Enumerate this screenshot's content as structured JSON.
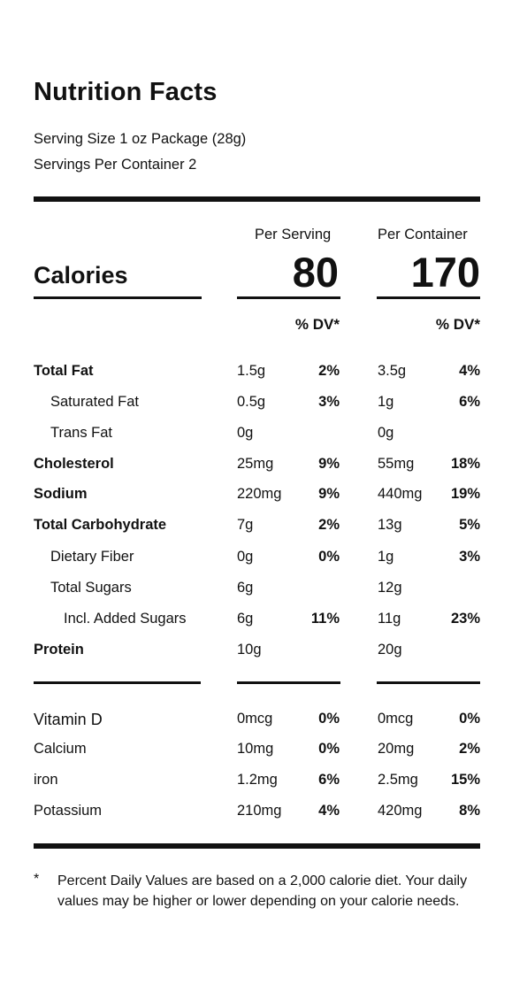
{
  "header": {
    "title": "Nutrition Facts",
    "serving_size": "Serving Size 1 oz Package (28g)",
    "servings_per_container": "Servings Per Container 2"
  },
  "columns": {
    "per_serving": "Per Serving",
    "per_container": "Per Container"
  },
  "calories": {
    "label": "Calories",
    "per_serving": "80",
    "per_container": "170"
  },
  "dv_header": "% DV*",
  "nutrients": [
    {
      "name": "Total Fat",
      "serving": "1.5g",
      "serving_dv": "2%",
      "container": "3.5g",
      "container_dv": "4%"
    },
    {
      "name": "Saturated Fat",
      "serving": "0.5g",
      "serving_dv": "3%",
      "container": "1g",
      "container_dv": "6%"
    },
    {
      "name": "Trans Fat",
      "serving": "0g",
      "serving_dv": "",
      "container": "0g",
      "container_dv": ""
    },
    {
      "name": "Cholesterol",
      "serving": "25mg",
      "serving_dv": "9%",
      "container": "55mg",
      "container_dv": "18%"
    },
    {
      "name": "Sodium",
      "serving": "220mg",
      "serving_dv": "9%",
      "container": "440mg",
      "container_dv": "19%"
    },
    {
      "name": "Total Carbohydrate",
      "serving": "7g",
      "serving_dv": "2%",
      "container": "13g",
      "container_dv": "5%"
    },
    {
      "name": "Dietary Fiber",
      "serving": "0g",
      "serving_dv": "0%",
      "container": "1g",
      "container_dv": "3%"
    },
    {
      "name": "Total Sugars",
      "serving": "6g",
      "serving_dv": "",
      "container": "12g",
      "container_dv": ""
    },
    {
      "name": "Incl. Added Sugars",
      "serving": "6g",
      "serving_dv": "11%",
      "container": "11g",
      "container_dv": "23%"
    },
    {
      "name": "Protein",
      "serving": "10g",
      "serving_dv": "",
      "container": "20g",
      "container_dv": ""
    }
  ],
  "vitamins": [
    {
      "name": "Vitamin D",
      "serving": "0mcg",
      "serving_dv": "0%",
      "container": "0mcg",
      "container_dv": "0%"
    },
    {
      "name": "Calcium",
      "serving": "10mg",
      "serving_dv": "0%",
      "container": "20mg",
      "container_dv": "2%"
    },
    {
      "name": "iron",
      "serving": "1.2mg",
      "serving_dv": "6%",
      "container": "2.5mg",
      "container_dv": "15%"
    },
    {
      "name": "Potassium",
      "serving": "210mg",
      "serving_dv": "4%",
      "container": "420mg",
      "container_dv": "8%"
    }
  ],
  "footnote": {
    "symbol": "*",
    "text": "Percent Daily Values are based on a 2,000 calorie diet. Your daily values may be higher or lower depending on your calorie needs."
  }
}
